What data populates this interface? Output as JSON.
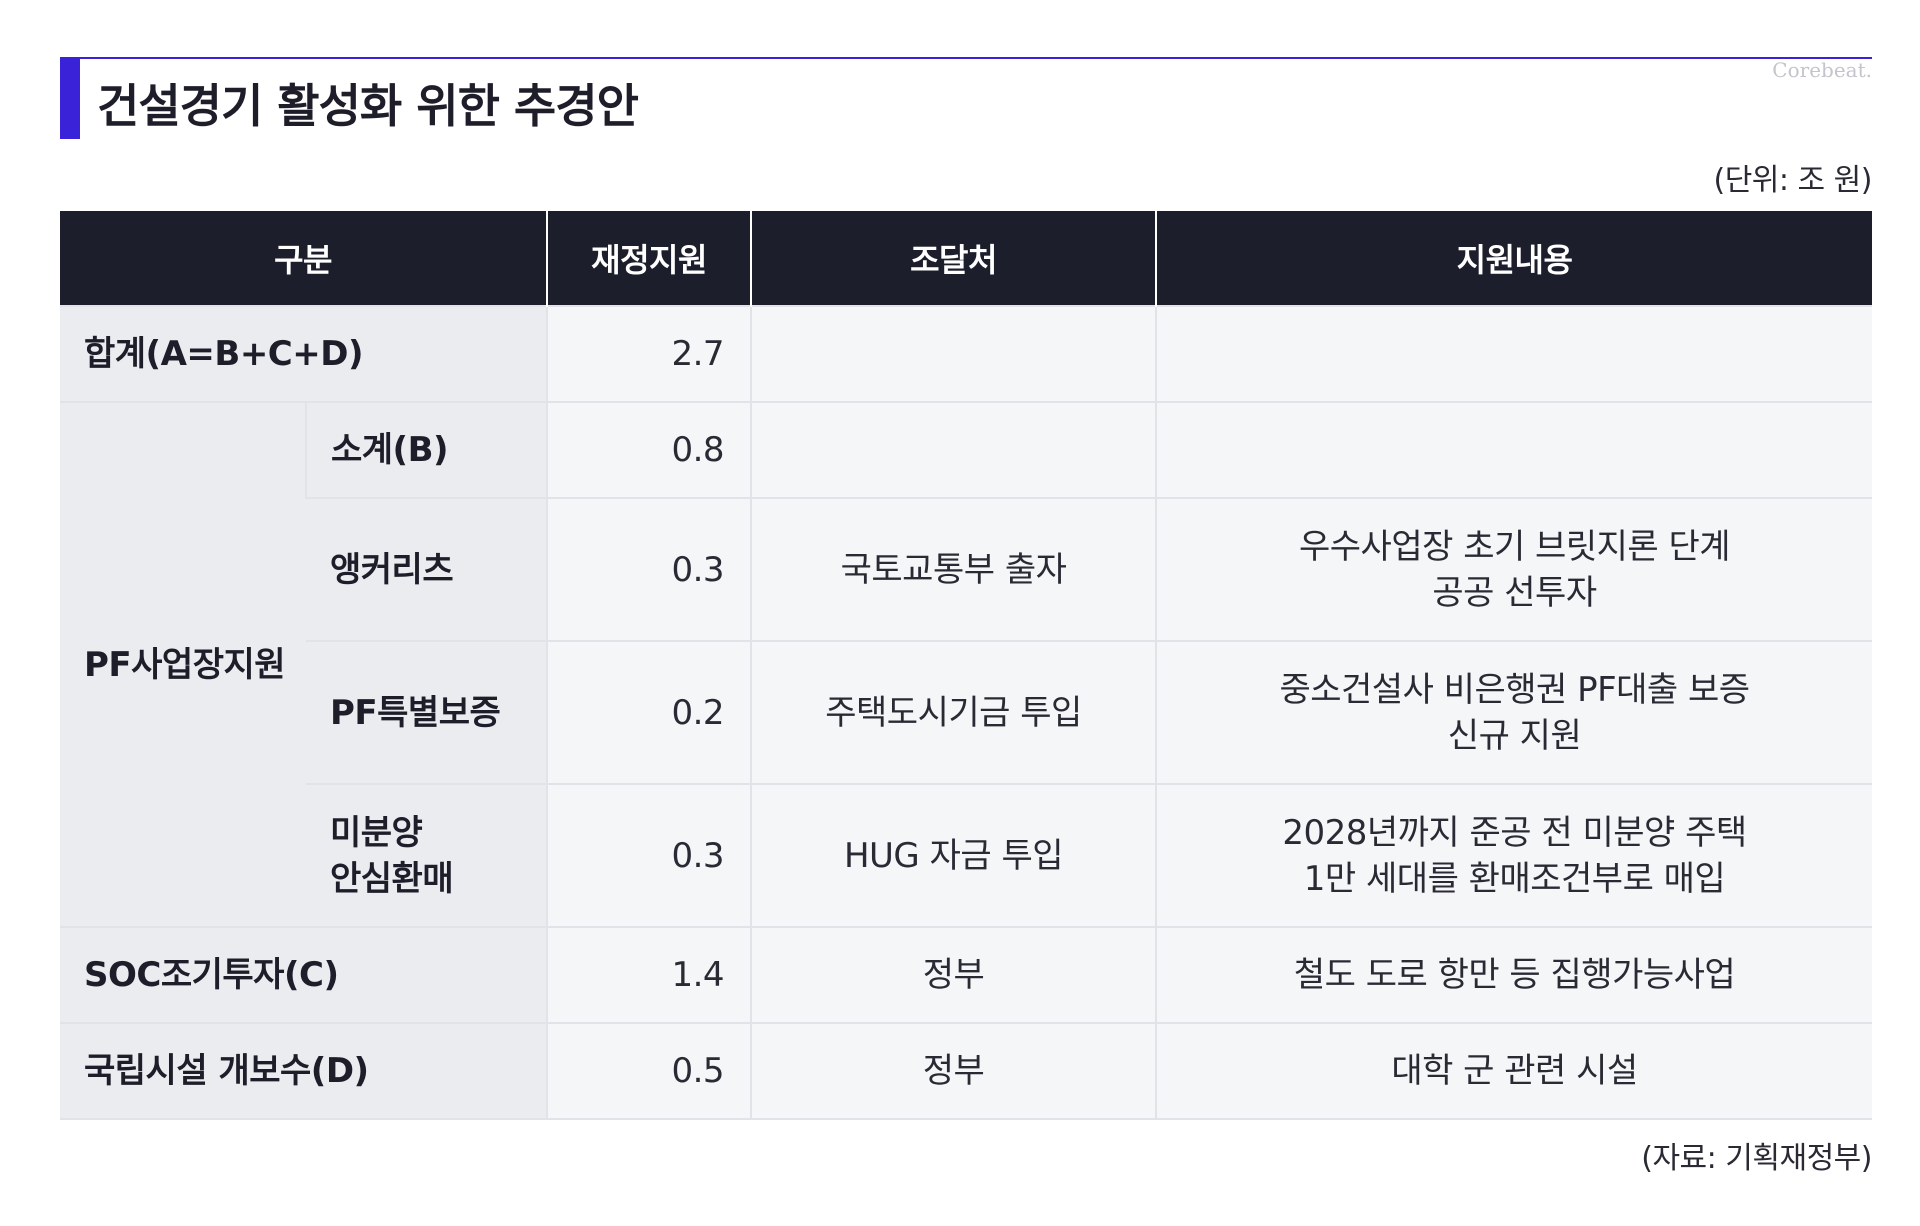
{
  "header": {
    "title": "건설경기 활성화 위한 추경안",
    "brand": "Corebeat.",
    "unit": "(단위: 조 원)"
  },
  "table": {
    "columns": [
      "구분",
      "재정지원",
      "조달처",
      "지원내용"
    ],
    "rows": {
      "total": {
        "label": "합계(A=B+C+D)",
        "amount": "2.7",
        "source": "",
        "content": ""
      },
      "pf": {
        "label": "PF사업장지원",
        "subtotal": {
          "label": "소계(B)",
          "amount": "0.8",
          "source": "",
          "content": ""
        },
        "anchor": {
          "label": "앵커리츠",
          "amount": "0.3",
          "source": "국토교통부 출자",
          "content_line1": "우수사업장 초기 브릿지론 단계",
          "content_line2": "공공 선투자"
        },
        "guarantee": {
          "label": "PF특별보증",
          "amount": "0.2",
          "source": "주택도시기금 투입",
          "content_line1": "중소건설사 비은행권 PF대출 보증",
          "content_line2": "신규 지원"
        },
        "unsold": {
          "label_line1": "미분양",
          "label_line2": "안심환매",
          "amount": "0.3",
          "source": "HUG 자금 투입",
          "content_line1": "2028년까지 준공 전 미분양 주택",
          "content_line2": "1만 세대를 환매조건부로 매입"
        }
      },
      "soc": {
        "label": "SOC조기투자(C)",
        "amount": "1.4",
        "source": "정부",
        "content": "철도 도로 항만 등 집행가능사업"
      },
      "national": {
        "label": "국립시설 개보수(D)",
        "amount": "0.5",
        "source": "정부",
        "content": "대학 군 관련 시설"
      }
    }
  },
  "footer": {
    "source_note": "(자료: 기획재정부)"
  }
}
